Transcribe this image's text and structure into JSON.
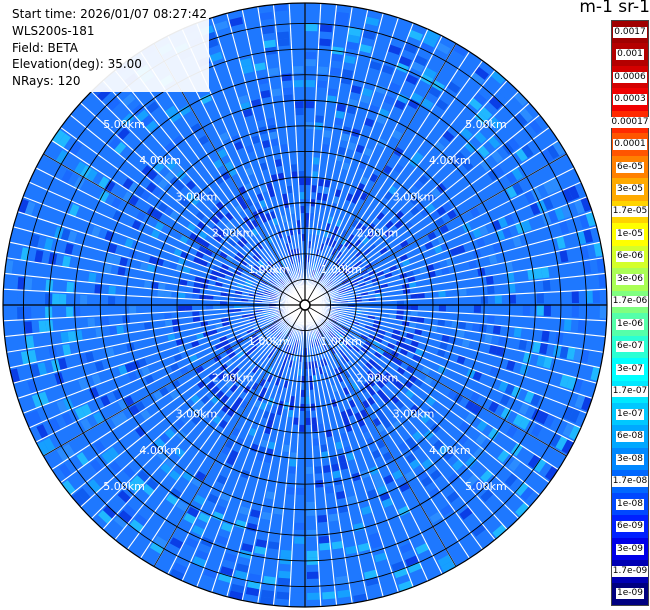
{
  "info": {
    "start_time": "Start time: 2026/01/07 08:27:42",
    "instrument": "WLS200s-181",
    "field": "Field: BETA",
    "elevation": "Elevation(deg): 35.00",
    "nrays": "NRays: 120"
  },
  "plot": {
    "type": "polar-ppi",
    "n_rays": 120,
    "range_km_max": 5.9,
    "ring_labels": [
      "1.00km",
      "2.00km",
      "3.00km",
      "4.00km",
      "5.00km"
    ],
    "ring_values_km": [
      1,
      2,
      3,
      4,
      5
    ],
    "colors": {
      "background_field": "#1e78ff",
      "grid_line": "#000000",
      "ring_label": "#ffffff"
    }
  },
  "colorbar": {
    "title": "m-1 sr-1",
    "levels": [
      {
        "label": "0.0017",
        "color": "#a00000"
      },
      {
        "label": "0.001",
        "color": "#b40000"
      },
      {
        "label": "0.0006",
        "color": "#d40000"
      },
      {
        "label": "0.0003",
        "color": "#f00000"
      },
      {
        "label": "0.00017",
        "color": "#ff2a00"
      },
      {
        "label": "0.0001",
        "color": "#ff5500"
      },
      {
        "label": "6e-05",
        "color": "#ff8000"
      },
      {
        "label": "3e-05",
        "color": "#ffaa00"
      },
      {
        "label": "1.7e-05",
        "color": "#ffd400"
      },
      {
        "label": "1e-05",
        "color": "#ffff00"
      },
      {
        "label": "6e-06",
        "color": "#d4ff2a"
      },
      {
        "label": "3e-06",
        "color": "#aaff55"
      },
      {
        "label": "1.7e-06",
        "color": "#80ff80"
      },
      {
        "label": "1e-06",
        "color": "#55ffaa"
      },
      {
        "label": "6e-07",
        "color": "#2affd4"
      },
      {
        "label": "3e-07",
        "color": "#00ffff"
      },
      {
        "label": "1.7e-07",
        "color": "#00e8ff"
      },
      {
        "label": "1e-07",
        "color": "#00c8ff"
      },
      {
        "label": "6e-08",
        "color": "#00a8ff"
      },
      {
        "label": "3e-08",
        "color": "#0088ff"
      },
      {
        "label": "1.7e-08",
        "color": "#0068ff"
      },
      {
        "label": "1e-08",
        "color": "#0048ff"
      },
      {
        "label": "6e-09",
        "color": "#0020ff"
      },
      {
        "label": "3e-09",
        "color": "#0000e8"
      },
      {
        "label": "1.7e-09",
        "color": "#0000b4"
      },
      {
        "label": "1e-09",
        "color": "#000080"
      }
    ]
  }
}
